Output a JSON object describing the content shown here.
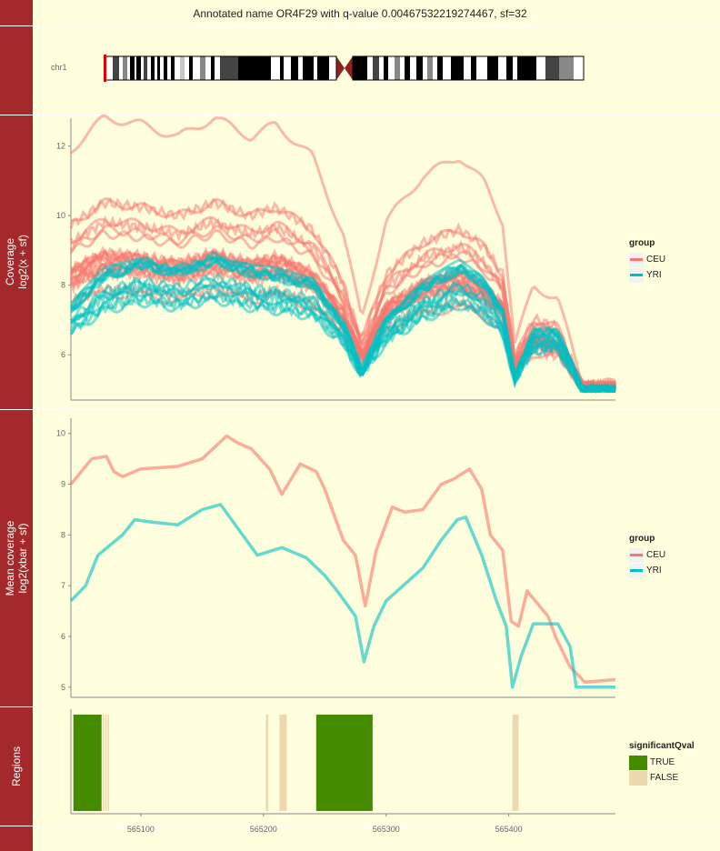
{
  "title": "Annotated name OR4F29 with q-value 0.00467532219274467, sf=32",
  "ideogram": {
    "chrom_label": "chr1",
    "colors": {
      "gpos100": "#000000",
      "gpos75": "#444444",
      "gpos50": "#888888",
      "gpos25": "#C8C8C8",
      "gneg": "#FFFFFF",
      "acen": "#8B2323",
      "highlight": "#E00000"
    }
  },
  "strips": {
    "coverage": [
      "Coverage",
      "log2(x + sf)"
    ],
    "mean": [
      "Mean coverage",
      "log2(xbar + sf)"
    ],
    "regions": "Regions"
  },
  "colors": {
    "CEU": "#F8766D",
    "YRI": "#00BFC4",
    "TRUE": "#458B00",
    "FALSE": "#EED8AE"
  },
  "legends": {
    "group_title": "group",
    "group_items": [
      "CEU",
      "YRI"
    ],
    "region_title": "significantQval",
    "region_items": [
      "TRUE",
      "FALSE"
    ]
  },
  "chart_data": [
    {
      "type": "line",
      "name": "Coverage panel",
      "ylabel": "Coverage log2(x + sf)",
      "xlim": [
        565043,
        565487
      ],
      "ylim": [
        4.7,
        12.8
      ],
      "yticks": [
        6,
        8,
        10,
        12
      ],
      "series": [
        {
          "name": "CEU",
          "x": [
            565043,
            565070,
            565100,
            565130,
            565160,
            565190,
            565210,
            565240,
            565265,
            565280,
            565300,
            565330,
            565360,
            565380,
            565395,
            565405,
            565420,
            565440,
            565460,
            565487
          ],
          "y": [
            8.7,
            9.2,
            9.1,
            8.9,
            9.2,
            8.9,
            9.1,
            8.6,
            7.4,
            6.1,
            7.6,
            8.3,
            8.6,
            8.2,
            7.6,
            5.7,
            6.6,
            6.4,
            5.1,
            5.1
          ]
        },
        {
          "name": "YRI",
          "x": [
            565043,
            565070,
            565100,
            565130,
            565160,
            565190,
            565210,
            565240,
            565265,
            565280,
            565300,
            565330,
            565360,
            565380,
            565395,
            565405,
            565420,
            565440,
            565460,
            565487
          ],
          "y": [
            7.0,
            7.8,
            8.1,
            7.9,
            8.2,
            7.9,
            7.8,
            7.6,
            6.6,
            5.5,
            6.7,
            7.5,
            8.0,
            7.6,
            6.9,
            5.3,
            6.4,
            6.4,
            5.0,
            5.0
          ]
        }
      ]
    },
    {
      "type": "line",
      "name": "Mean coverage panel",
      "ylabel": "Mean coverage log2(xbar + sf)",
      "xlim": [
        565043,
        565487
      ],
      "ylim": [
        4.8,
        10.3
      ],
      "yticks": [
        5,
        6,
        7,
        8,
        9,
        10
      ],
      "series": [
        {
          "name": "CEU",
          "x": [
            565043,
            565060,
            565072,
            565078,
            565085,
            565100,
            565130,
            565150,
            565170,
            565180,
            565190,
            565205,
            565215,
            565230,
            565243,
            565250,
            565265,
            565275,
            565283,
            565292,
            565305,
            565315,
            565330,
            565345,
            565355,
            565368,
            565378,
            565385,
            565395,
            565402,
            565408,
            565415,
            565425,
            565432,
            565438,
            565450,
            565462,
            565487
          ],
          "y": [
            9.0,
            9.5,
            9.55,
            9.25,
            9.15,
            9.3,
            9.35,
            9.5,
            9.95,
            9.8,
            9.7,
            9.3,
            8.8,
            9.4,
            9.25,
            8.9,
            7.9,
            7.6,
            6.6,
            7.7,
            8.55,
            8.45,
            8.5,
            9.0,
            9.1,
            9.3,
            8.9,
            8.0,
            7.7,
            6.3,
            6.2,
            6.9,
            6.6,
            6.4,
            6.0,
            5.4,
            5.1,
            5.15
          ]
        },
        {
          "name": "YRI",
          "x": [
            565043,
            565055,
            565065,
            565075,
            565085,
            565095,
            565110,
            565130,
            565150,
            565165,
            565180,
            565195,
            565215,
            565235,
            565250,
            565260,
            565275,
            565282,
            565290,
            565300,
            565330,
            565345,
            565358,
            565365,
            565378,
            565390,
            565398,
            565403,
            565410,
            565420,
            565440,
            565450,
            565455,
            565487
          ],
          "y": [
            6.7,
            7.0,
            7.6,
            7.8,
            8.0,
            8.3,
            8.25,
            8.2,
            8.5,
            8.6,
            8.1,
            7.6,
            7.75,
            7.55,
            7.2,
            6.9,
            6.4,
            5.5,
            6.2,
            6.7,
            7.35,
            7.9,
            8.3,
            8.35,
            7.6,
            6.7,
            6.2,
            5.0,
            5.6,
            6.25,
            6.25,
            5.8,
            5.0,
            5.0
          ]
        }
      ]
    },
    {
      "type": "bar",
      "name": "Regions panel",
      "xlim": [
        565043,
        565487
      ],
      "xticks": [
        565100,
        565200,
        565300,
        565400
      ],
      "regions": [
        {
          "start": 565045,
          "end": 565068,
          "significant": "TRUE"
        },
        {
          "start": 565069,
          "end": 565070,
          "significant": "FALSE"
        },
        {
          "start": 565071,
          "end": 565072,
          "significant": "FALSE"
        },
        {
          "start": 565073,
          "end": 565074,
          "significant": "FALSE"
        },
        {
          "start": 565202,
          "end": 565204,
          "significant": "FALSE"
        },
        {
          "start": 565213,
          "end": 565219,
          "significant": "FALSE"
        },
        {
          "start": 565243,
          "end": 565289,
          "significant": "TRUE"
        },
        {
          "start": 565403,
          "end": 565408,
          "significant": "FALSE"
        }
      ]
    }
  ]
}
